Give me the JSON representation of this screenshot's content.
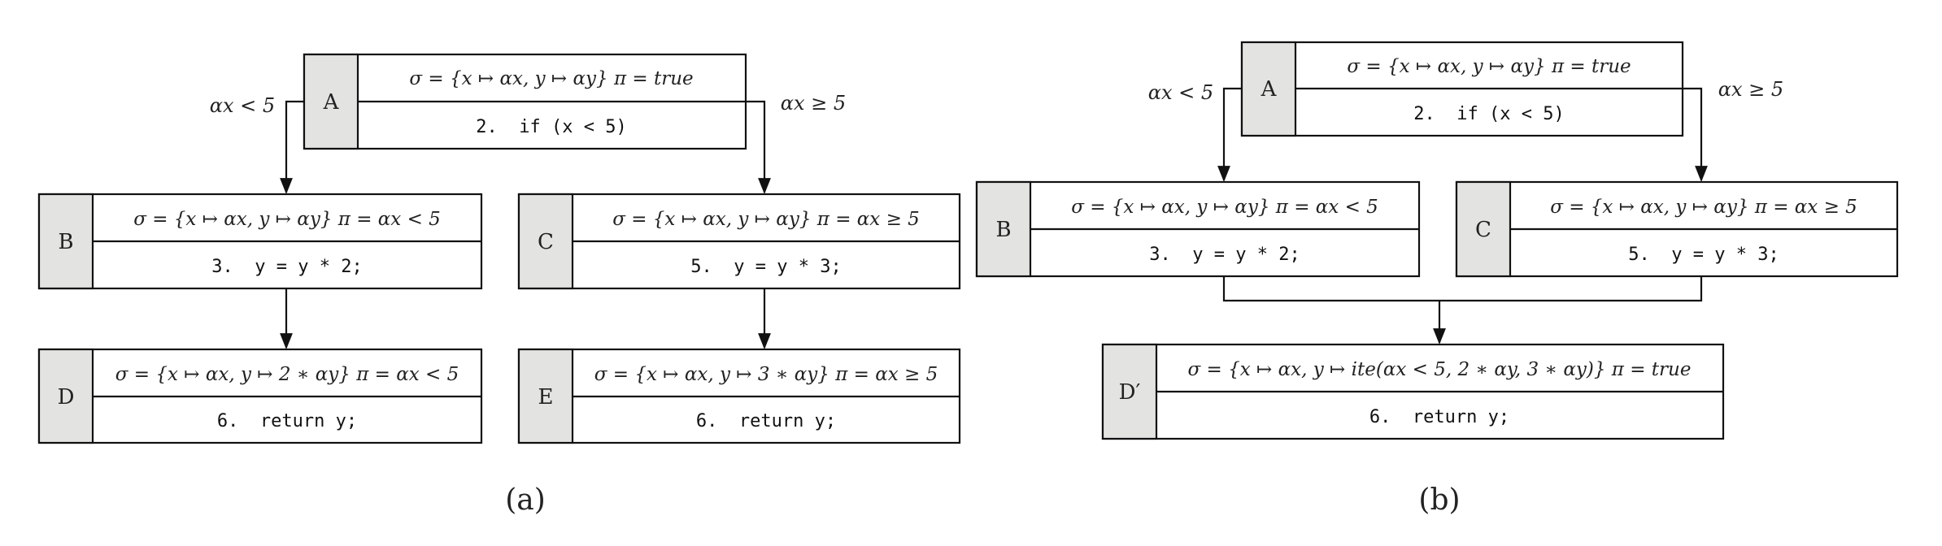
{
  "panel_a": {
    "caption": "(a)",
    "nodes": {
      "A": {
        "label": "A",
        "state": "σ = {x ↦ αx, y ↦ αy} π = true",
        "code": "2.  if (x < 5)"
      },
      "B": {
        "label": "B",
        "state": "σ = {x ↦ αx, y ↦ αy} π = αx < 5",
        "code": "3.  y = y * 2;"
      },
      "C": {
        "label": "C",
        "state": "σ = {x ↦ αx, y ↦ αy} π = αx ≥ 5",
        "code": "5.  y = y * 3;"
      },
      "D": {
        "label": "D",
        "state": "σ = {x ↦ αx, y ↦ 2 ∗ αy} π = αx < 5",
        "code": "6.  return y;"
      },
      "E": {
        "label": "E",
        "state": "σ = {x ↦ αx, y ↦ 3 ∗ αy} π = αx ≥ 5",
        "code": "6.  return y;"
      }
    },
    "edges": {
      "left_condition": "αx < 5",
      "right_condition": "αx ≥ 5"
    }
  },
  "panel_b": {
    "caption": "(b)",
    "nodes": {
      "A": {
        "label": "A",
        "state": "σ = {x ↦ αx, y ↦ αy} π = true",
        "code": "2.  if (x < 5)"
      },
      "B": {
        "label": "B",
        "state": "σ = {x ↦ αx, y ↦ αy} π = αx < 5",
        "code": "3.  y = y * 2;"
      },
      "C": {
        "label": "C",
        "state": "σ = {x ↦ αx, y ↦ αy} π = αx ≥ 5",
        "code": "5.  y = y * 3;"
      },
      "D": {
        "label": "D′",
        "state": "σ = {x ↦ αx, y ↦ ite(αx < 5, 2 ∗ αy, 3 ∗ αy)} π = true",
        "code": "6.  return y;"
      }
    },
    "edges": {
      "left_condition": "αx < 5",
      "right_condition": "αx ≥ 5"
    }
  }
}
